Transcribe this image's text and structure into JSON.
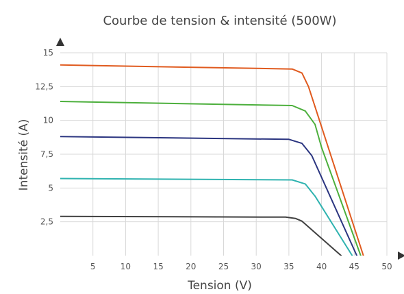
{
  "chart_data": {
    "type": "line",
    "title": "Courbe de tension & intensité (500W)",
    "xlabel": "Tension (V)",
    "ylabel": "Intensité (A)",
    "xlim": [
      0,
      50
    ],
    "ylim": [
      0,
      15
    ],
    "x_ticks": [
      {
        "value": 5,
        "label": "5"
      },
      {
        "value": 10,
        "label": "10"
      },
      {
        "value": 15,
        "label": "15"
      },
      {
        "value": 20,
        "label": "20"
      },
      {
        "value": 25,
        "label": "25"
      },
      {
        "value": 30,
        "label": "30"
      },
      {
        "value": 35,
        "label": "35"
      },
      {
        "value": 40,
        "label": "40"
      },
      {
        "value": 45,
        "label": "45"
      },
      {
        "value": 50,
        "label": "50"
      }
    ],
    "y_ticks": [
      {
        "value": 2.5,
        "label": "2,5"
      },
      {
        "value": 5,
        "label": "5"
      },
      {
        "value": 7.5,
        "label": "7,5"
      },
      {
        "value": 10,
        "label": "10"
      },
      {
        "value": 12.5,
        "label": "12,5"
      },
      {
        "value": 15,
        "label": "15"
      }
    ],
    "grid": true,
    "legend": "none",
    "series": [
      {
        "color": "#e05a1e",
        "points": [
          [
            0,
            14.1
          ],
          [
            35.5,
            13.8
          ],
          [
            37,
            13.5
          ],
          [
            38,
            12.5
          ],
          [
            46.4,
            0
          ]
        ]
      },
      {
        "color": "#4caf3c",
        "points": [
          [
            0,
            11.4
          ],
          [
            35.5,
            11.1
          ],
          [
            37.5,
            10.7
          ],
          [
            39,
            9.7
          ],
          [
            40,
            8.0
          ],
          [
            46,
            0
          ]
        ]
      },
      {
        "color": "#2b3580",
        "points": [
          [
            0,
            8.8
          ],
          [
            35,
            8.6
          ],
          [
            37,
            8.3
          ],
          [
            38.5,
            7.4
          ],
          [
            45.4,
            0
          ]
        ]
      },
      {
        "color": "#2fb3b0",
        "points": [
          [
            0,
            5.7
          ],
          [
            35.5,
            5.6
          ],
          [
            37.5,
            5.3
          ],
          [
            39,
            4.4
          ],
          [
            44.7,
            0
          ]
        ]
      },
      {
        "color": "#404040",
        "points": [
          [
            0,
            2.9
          ],
          [
            34.5,
            2.85
          ],
          [
            36,
            2.75
          ],
          [
            37,
            2.55
          ],
          [
            43,
            0
          ]
        ]
      }
    ]
  }
}
